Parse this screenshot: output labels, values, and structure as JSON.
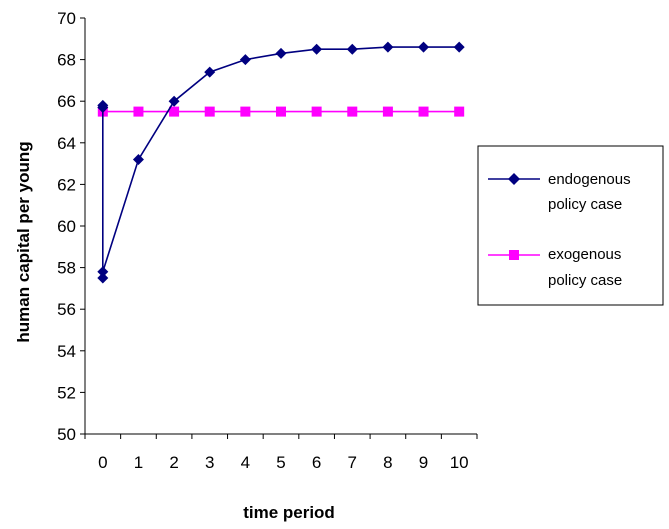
{
  "chart_data": {
    "type": "line",
    "title": "",
    "xlabel": "time period",
    "ylabel": "human capital per young",
    "ylim": [
      50,
      70
    ],
    "y_ticks": [
      50,
      52,
      54,
      56,
      58,
      60,
      62,
      64,
      66,
      68,
      70
    ],
    "categories": [
      "0",
      "1",
      "2",
      "3",
      "4",
      "5",
      "6",
      "7",
      "8",
      "9",
      "10"
    ],
    "grid": false,
    "legend_position": "right",
    "series": [
      {
        "name": "endogenous policy case",
        "color": "#000080",
        "marker": "diamond",
        "points": [
          {
            "x": 0,
            "y": 65.7
          },
          {
            "x": 0,
            "y": 57.5
          },
          {
            "x": 0,
            "y": 65.8
          },
          {
            "x": 0,
            "y": 57.8
          },
          {
            "x": 1,
            "y": 63.2
          },
          {
            "x": 2,
            "y": 66.0
          },
          {
            "x": 3,
            "y": 67.4
          },
          {
            "x": 4,
            "y": 68.0
          },
          {
            "x": 5,
            "y": 68.3
          },
          {
            "x": 6,
            "y": 68.5
          },
          {
            "x": 7,
            "y": 68.5
          },
          {
            "x": 8,
            "y": 68.6
          },
          {
            "x": 9,
            "y": 68.6
          },
          {
            "x": 10,
            "y": 68.6
          }
        ]
      },
      {
        "name": "exogenous policy case",
        "color": "#FF00FF",
        "marker": "square",
        "points": [
          {
            "x": 0,
            "y": 65.5
          },
          {
            "x": 1,
            "y": 65.5
          },
          {
            "x": 2,
            "y": 65.5
          },
          {
            "x": 3,
            "y": 65.5
          },
          {
            "x": 4,
            "y": 65.5
          },
          {
            "x": 5,
            "y": 65.5
          },
          {
            "x": 6,
            "y": 65.5
          },
          {
            "x": 7,
            "y": 65.5
          },
          {
            "x": 8,
            "y": 65.5
          },
          {
            "x": 9,
            "y": 65.5
          },
          {
            "x": 10,
            "y": 65.5
          }
        ]
      }
    ],
    "legend": {
      "entries": [
        {
          "lines": [
            "endogenous",
            "policy case"
          ]
        },
        {
          "lines": [
            "exogenous",
            "policy case"
          ]
        }
      ]
    }
  }
}
